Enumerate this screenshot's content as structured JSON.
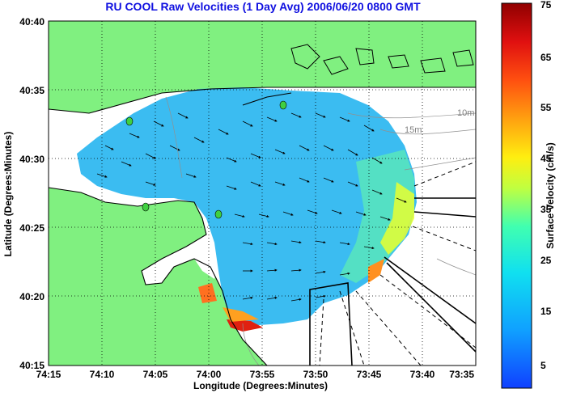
{
  "title": "RU COOL Raw Velocities (1 Day Avg) 2006/06/20 0800 GMT",
  "x_axis": {
    "label": "Longitude (Degrees:Minutes)",
    "ticks": [
      "74:15",
      "74:10",
      "74:05",
      "74:00",
      "73:55",
      "73:50",
      "73:45",
      "73:40",
      "73:35"
    ]
  },
  "y_axis": {
    "label": "Latitude (Degrees:Minutes)",
    "ticks": [
      "40:40",
      "40:35",
      "40:30",
      "40:25",
      "40:20",
      "40:15"
    ]
  },
  "colorbar": {
    "label": "Surface Velocity (cm/s)",
    "ticks": [
      "75",
      "65",
      "55",
      "45",
      "35",
      "25",
      "15",
      "5"
    ],
    "colors": [
      "#8b0000",
      "#e01010",
      "#ff6a00",
      "#ffd000",
      "#d0ff30",
      "#30ffb0",
      "#10c8ff",
      "#1060ff",
      "#0020c0"
    ]
  },
  "depth_labels": [
    "10m",
    "15m"
  ],
  "colors": {
    "land": "#80f080",
    "water": "#ffffff",
    "title": "#1010e0",
    "coast": "#000000"
  }
}
